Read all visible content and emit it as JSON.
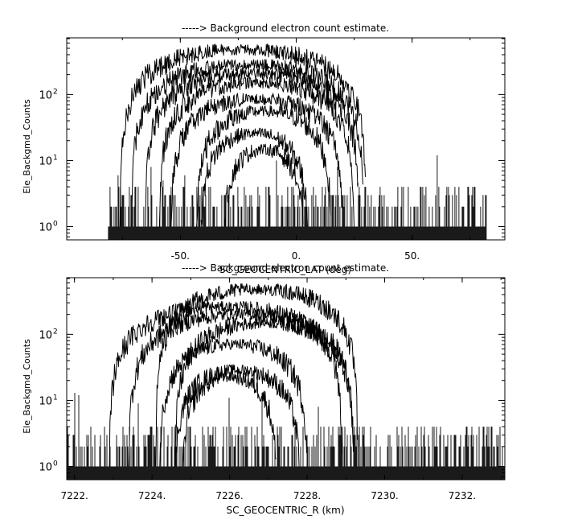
{
  "chart_data": [
    {
      "type": "line",
      "title": "-----> Background electron count estimate.",
      "xlabel": "SC_GEOCENTRIC_LAT (deg)",
      "ylabel": "Ele_Backgmd_Counts",
      "xlim": [
        -99,
        90
      ],
      "ylim": [
        0.63,
        720
      ],
      "yscale": "log",
      "x_ticks": [
        {
          "value": -50,
          "label": "-50."
        },
        {
          "value": 0,
          "label": "0."
        },
        {
          "value": 50,
          "label": "50."
        }
      ],
      "y_ticks": [
        {
          "value": 1,
          "label": "10",
          "exp": "0"
        },
        {
          "value": 10,
          "label": "10",
          "exp": "1"
        },
        {
          "value": 100,
          "label": "10",
          "exp": "2"
        }
      ],
      "noise": {
        "x_start": -81,
        "x_end": 82,
        "floor": 1,
        "max": 4,
        "spike_max": 13
      },
      "arches": [
        {
          "center": -23,
          "half_width": 53,
          "peak": 480
        },
        {
          "center": -21,
          "half_width": 50,
          "peak": 280
        },
        {
          "center": -19,
          "half_width": 46,
          "peak": 210
        },
        {
          "center": -17,
          "half_width": 42,
          "peak": 150
        },
        {
          "center": -17,
          "half_width": 37,
          "peak": 85
        },
        {
          "center": -14,
          "half_width": 29,
          "peak": 55
        },
        {
          "center": -18,
          "half_width": 23,
          "peak": 25
        },
        {
          "center": -14,
          "half_width": 17,
          "peak": 14
        }
      ],
      "color": "#000000"
    },
    {
      "type": "line",
      "title": "-----> Background electron count estimate.",
      "xlabel": "SC_GEOCENTRIC_R (km)",
      "ylabel": "Ele_Backgmd_Counts",
      "xlim": [
        7221.8,
        7233.1
      ],
      "ylim": [
        0.63,
        720
      ],
      "yscale": "log",
      "x_ticks": [
        {
          "value": 7222,
          "label": "7222."
        },
        {
          "value": 7224,
          "label": "7224."
        },
        {
          "value": 7226,
          "label": "7226."
        },
        {
          "value": 7228,
          "label": "7228."
        },
        {
          "value": 7230,
          "label": "7230."
        },
        {
          "value": 7232,
          "label": "7232."
        }
      ],
      "y_ticks": [
        {
          "value": 1,
          "label": "10",
          "exp": "0"
        },
        {
          "value": 10,
          "label": "10",
          "exp": "1"
        },
        {
          "value": 100,
          "label": "10",
          "exp": "2"
        }
      ],
      "noise": {
        "x_start": 7221.8,
        "x_end": 7233.1,
        "floor": 1,
        "max": 4,
        "spike_max": 14
      },
      "arches": [
        {
          "center": 7226.7,
          "half_width": 2.6,
          "peak": 480
        },
        {
          "center": 7225.9,
          "half_width": 3.0,
          "peak": 260
        },
        {
          "center": 7226.3,
          "half_width": 2.9,
          "peak": 200
        },
        {
          "center": 7226.9,
          "half_width": 2.3,
          "peak": 150
        },
        {
          "center": 7226.1,
          "half_width": 1.9,
          "peak": 70
        },
        {
          "center": 7226.2,
          "half_width": 1.6,
          "peak": 28
        },
        {
          "center": 7226.0,
          "half_width": 1.2,
          "peak": 22
        }
      ],
      "color": "#000000"
    }
  ]
}
